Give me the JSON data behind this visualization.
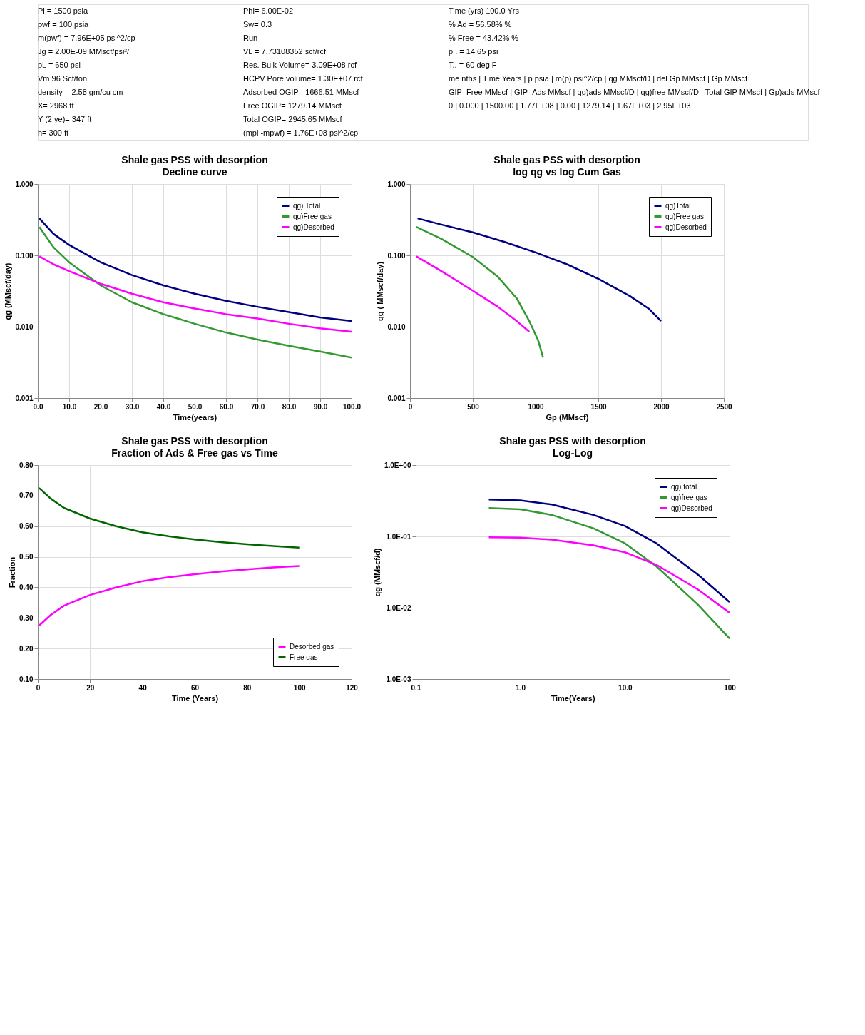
{
  "chart_data": [
    {
      "type": "other",
      "annotations": [
        "Pi = 1500 psia",
        "pwf = 100 psia",
        "m(pwf) = 7.96E+05 psi^2/cp",
        "Jg = 2.00E-09 MMscf/psi²/",
        "pL = 650 psi",
        "Vm 96 Scf/ton",
        "density = 2.58 gm/cu cm",
        "X= 2968 ft",
        "Y (2 ye)= 347 ft",
        "h= 300 ft",
        "Phi= 6.00E-02",
        "Sw= 0.3",
        "Run",
        "VL = 7.73108352 scf/rcf",
        "Res. Bulk Volume= 3.09E+08 rcf",
        "HCPV Pore volume= 1.30E+07 rcf",
        "Adsorbed OGIP= 1666.51 MMscf",
        "Free OGIP= 1279.14 MMscf",
        "Total OGIP= 2945.65 MMscf",
        "(mpi -mpwf) = 1.76E+08 psi^2/cp",
        "Time (yrs) 100.0 Yrs",
        "% Ad = 56.58% %",
        "% Free = 43.42% %",
        "p.. = 14.65 psi",
        "T.. = 60 deg F",
        "me nths | Time Years | p psia | m(p) psi^2/cp | qg MMscf/D | del Gp MMscf | Gp MMscf",
        "GIP_Free MMscf | GIP_Ads MMscf | qg)ads MMscf/D | qg)free MMscf/D | Total GIP MMscf | Gp)ads MMscf",
        "0 | 0.000 | 1500.00 | 1.77E+08 | 0.00 | 1279.14 | 1.67E+03 | 2.95E+03"
      ]
    },
    {
      "type": "line",
      "title": "Shale gas PSS with desorption",
      "subtitle": "Decline curve",
      "xlabel": "Time(years)",
      "ylabel": "qg (MMscf/day)",
      "log": "y",
      "grid": true,
      "legend": "top right",
      "xlim": [
        0,
        100
      ],
      "xticks": [
        {
          "value": 0,
          "label": "0.0"
        },
        {
          "value": 10,
          "label": "10.0"
        },
        {
          "value": 20,
          "label": "20.0"
        },
        {
          "value": 30,
          "label": "30.0"
        },
        {
          "value": 40,
          "label": "40.0"
        },
        {
          "value": 50,
          "label": "50.0"
        },
        {
          "value": 60,
          "label": "60.0"
        },
        {
          "value": 70,
          "label": "70.0"
        },
        {
          "value": 80,
          "label": "80.0"
        },
        {
          "value": 90,
          "label": "90.0"
        },
        {
          "value": 100,
          "label": "100.0"
        }
      ],
      "ylim": [
        0.001,
        1
      ],
      "yticks": [
        0.001,
        {
          "value": 0.01,
          "label": "0.010"
        },
        {
          "value": 0.1,
          "label": "0.100"
        },
        {
          "value": 1,
          "label": "1.000"
        }
      ],
      "x": [
        0.5,
        5,
        10,
        20,
        30,
        40,
        50,
        60,
        70,
        80,
        90,
        100
      ],
      "series": [
        {
          "name": "qg) Total",
          "color": "#000080",
          "values": [
            0.33,
            0.2,
            0.14,
            0.08,
            0.053,
            0.038,
            0.029,
            0.023,
            0.019,
            0.016,
            0.0135,
            0.012
          ]
        },
        {
          "name": "qg)Free gas",
          "color": "#339933",
          "values": [
            0.25,
            0.13,
            0.08,
            0.038,
            0.022,
            0.015,
            0.011,
            0.0083,
            0.0066,
            0.0054,
            0.0045,
            0.0037
          ]
        },
        {
          "name": "qg)Desorbed",
          "color": "#ff00ff",
          "values": [
            0.097,
            0.075,
            0.06,
            0.04,
            0.029,
            0.022,
            0.018,
            0.015,
            0.013,
            0.011,
            0.0095,
            0.0085
          ]
        }
      ]
    },
    {
      "type": "line",
      "title": "Shale gas PSS with desorption",
      "subtitle": "log qg vs log Cum Gas",
      "xlabel": "Gp (MMscf)",
      "ylabel": "qg ( MMscf/day)",
      "log": "y",
      "grid": true,
      "legend": "top right",
      "xlim": [
        0,
        2500
      ],
      "xticks": [
        0,
        500,
        1000,
        1500,
        2000,
        2500
      ],
      "ylim": [
        0.001,
        1
      ],
      "yticks": [
        0.001,
        {
          "value": 0.01,
          "label": "0.010"
        },
        {
          "value": 0.1,
          "label": "0.100"
        },
        {
          "value": 1,
          "label": "1.000"
        }
      ],
      "series": [
        {
          "name": "qg)Total",
          "color": "#000080",
          "x": [
            60,
            250,
            500,
            750,
            1000,
            1250,
            1500,
            1750,
            1900,
            2000
          ],
          "values": [
            0.33,
            0.27,
            0.21,
            0.155,
            0.11,
            0.075,
            0.047,
            0.027,
            0.018,
            0.012
          ]
        },
        {
          "name": "qg)Free gas",
          "color": "#339933",
          "x": [
            50,
            250,
            500,
            700,
            850,
            950,
            1020,
            1060
          ],
          "values": [
            0.25,
            0.17,
            0.095,
            0.05,
            0.025,
            0.012,
            0.0065,
            0.0037
          ]
        },
        {
          "name": "qg)Desorbed",
          "color": "#ff00ff",
          "x": [
            50,
            250,
            500,
            700,
            850,
            950
          ],
          "values": [
            0.097,
            0.06,
            0.032,
            0.019,
            0.012,
            0.0085
          ]
        }
      ]
    },
    {
      "type": "line",
      "title": "Shale gas PSS with desorption",
      "subtitle": "Fraction of Ads & Free gas vs Time",
      "xlabel": "Time (Years)",
      "ylabel": "Fraction",
      "grid": true,
      "legend": "bottom right",
      "xlim": [
        0,
        120
      ],
      "xticks": [
        0,
        20,
        40,
        60,
        80,
        100,
        120
      ],
      "ylim": [
        0.1,
        0.8
      ],
      "yticks": [
        {
          "value": 0.1,
          "label": "0.10"
        },
        {
          "value": 0.2,
          "label": "0.20"
        },
        {
          "value": 0.3,
          "label": "0.30"
        },
        {
          "value": 0.4,
          "label": "0.40"
        },
        {
          "value": 0.5,
          "label": "0.50"
        },
        {
          "value": 0.6,
          "label": "0.60"
        },
        {
          "value": 0.7,
          "label": "0.70"
        },
        {
          "value": 0.8,
          "label": "0.80"
        }
      ],
      "x": [
        0.5,
        5,
        10,
        20,
        30,
        40,
        50,
        60,
        70,
        80,
        90,
        100
      ],
      "series": [
        {
          "name": "Desorbed gas",
          "color": "#ff00ff",
          "values": [
            0.275,
            0.31,
            0.34,
            0.375,
            0.4,
            0.42,
            0.433,
            0.443,
            0.452,
            0.459,
            0.465,
            0.47
          ]
        },
        {
          "name": "Free gas",
          "color": "#006600",
          "values": [
            0.725,
            0.69,
            0.66,
            0.625,
            0.6,
            0.58,
            0.567,
            0.557,
            0.548,
            0.541,
            0.535,
            0.53
          ]
        }
      ]
    },
    {
      "type": "line",
      "title": "Shale gas PSS with desorption",
      "subtitle": "Log-Log",
      "xlabel": "Time(Years)",
      "ylabel": "qg (MMscf/d)",
      "log": "xy",
      "grid": true,
      "legend": "top right",
      "xlim": [
        0.1,
        100
      ],
      "xticks": [
        0.1,
        {
          "value": 1,
          "label": "1.0"
        },
        {
          "value": 10,
          "label": "10.0"
        },
        100
      ],
      "ylim": [
        0.001,
        1
      ],
      "yticks": [
        {
          "value": 0.001,
          "label": "1.0E-03"
        },
        {
          "value": 0.01,
          "label": "1.0E-02"
        },
        {
          "value": 0.1,
          "label": "1.0E-01"
        },
        {
          "value": 1,
          "label": "1.0E+00"
        }
      ],
      "x": [
        0.5,
        1,
        2,
        5,
        10,
        20,
        50,
        100
      ],
      "series": [
        {
          "name": "qg) total",
          "color": "#000080",
          "values": [
            0.33,
            0.32,
            0.28,
            0.2,
            0.14,
            0.08,
            0.029,
            0.012
          ]
        },
        {
          "name": "qg)free gas",
          "color": "#339933",
          "values": [
            0.25,
            0.24,
            0.2,
            0.13,
            0.08,
            0.038,
            0.011,
            0.0037
          ]
        },
        {
          "name": "qg)Desorbed",
          "color": "#ff00ff",
          "values": [
            0.097,
            0.096,
            0.09,
            0.075,
            0.06,
            0.04,
            0.018,
            0.0085
          ]
        }
      ]
    }
  ]
}
